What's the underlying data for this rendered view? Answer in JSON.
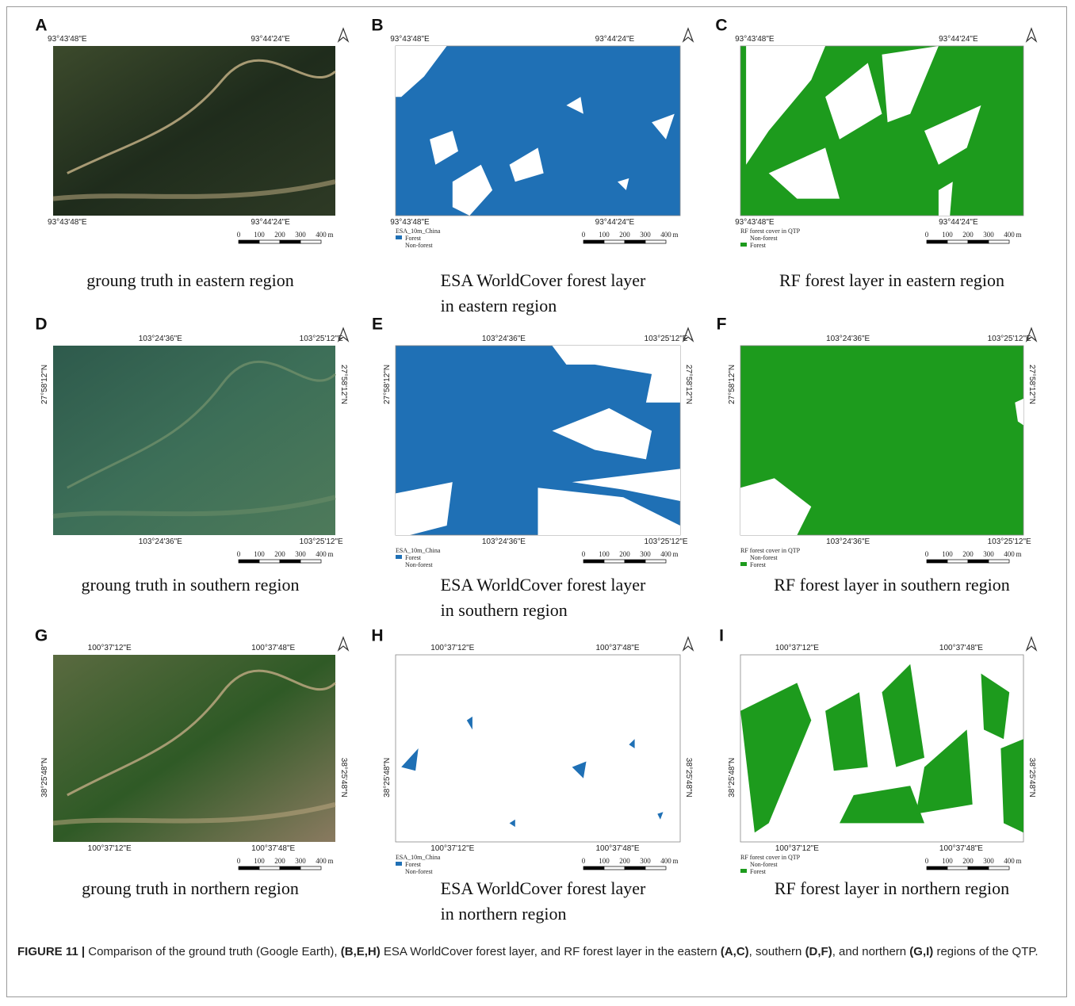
{
  "panels": [
    {
      "letter": "A",
      "kind": "photo",
      "top_labels": [
        "93°43'48\"E",
        "93°44'24\"E"
      ],
      "bottom_labels": [
        "93°43'48\"E",
        "93°44'24\"E"
      ],
      "scale_bar": [
        "0",
        "100",
        "200",
        "300",
        "400",
        "m"
      ],
      "caption": [
        "groung truth in eastern region"
      ]
    },
    {
      "letter": "B",
      "kind": "esa",
      "color": "#1f70b5",
      "top_labels": [
        "93°43'48\"E",
        "93°44'24\"E"
      ],
      "bottom_labels": [
        "93°43'48\"E",
        "93°44'24\"E"
      ],
      "legend": {
        "title": "ESA_10m_China",
        "items": [
          "Forest",
          "Non-forest"
        ]
      },
      "scale_bar": [
        "0",
        "100",
        "200",
        "300",
        "400",
        "m"
      ],
      "caption": [
        "ESA WorldCover forest layer",
        "in eastern region"
      ]
    },
    {
      "letter": "C",
      "kind": "rf",
      "color": "#1d9b1d",
      "top_labels": [
        "93°43'48\"E",
        "93°44'24\"E"
      ],
      "bottom_labels": [
        "93°43'48\"E",
        "93°44'24\"E"
      ],
      "legend": {
        "title": "RF forest cover in QTP",
        "items": [
          "Non-forest",
          "Forest"
        ]
      },
      "scale_bar": [
        "0",
        "100",
        "200",
        "300",
        "400",
        "m"
      ],
      "caption": [
        "RF forest layer in eastern region"
      ]
    },
    {
      "letter": "D",
      "kind": "photo2",
      "top_labels": [
        "103°24'36\"E",
        "103°25'12\"E"
      ],
      "bottom_labels": [
        "103°24'36\"E",
        "103°25'12\"E"
      ],
      "side_labels": [
        "27°58'12\"N",
        "27°58'12\"N"
      ],
      "scale_bar": [
        "0",
        "100",
        "200",
        "300",
        "400",
        "m"
      ],
      "caption": [
        "groung truth in southern region"
      ]
    },
    {
      "letter": "E",
      "kind": "esa",
      "color": "#1f70b5",
      "top_labels": [
        "103°24'36\"E",
        "103°25'12\"E"
      ],
      "bottom_labels": [
        "103°24'36\"E",
        "103°25'12\"E"
      ],
      "side_labels": [
        "27°58'12\"N",
        "27°58'12\"N"
      ],
      "legend": {
        "title": "ESA_10m_China",
        "items": [
          "Forest",
          "Non-forest"
        ]
      },
      "scale_bar": [
        "0",
        "100",
        "200",
        "300",
        "400",
        "m"
      ],
      "caption": [
        "ESA WorldCover forest layer",
        "in southern region"
      ]
    },
    {
      "letter": "F",
      "kind": "rf",
      "color": "#1d9b1d",
      "top_labels": [
        "103°24'36\"E",
        "103°25'12\"E"
      ],
      "bottom_labels": [
        "103°24'36\"E",
        "103°25'12\"E"
      ],
      "side_labels": [
        "27°58'12\"N",
        "27°58'12\"N"
      ],
      "legend": {
        "title": "RF forest cover in QTP",
        "items": [
          "Non-forest",
          "Forest"
        ]
      },
      "scale_bar": [
        "0",
        "100",
        "200",
        "300",
        "400",
        "m"
      ],
      "caption": [
        "RF forest layer in southern region"
      ]
    },
    {
      "letter": "G",
      "kind": "photo3",
      "top_labels": [
        "100°37'12\"E",
        "100°37'48\"E"
      ],
      "bottom_labels": [
        "100°37'12\"E",
        "100°37'48\"E"
      ],
      "side_labels": [
        "38°25'48\"N",
        "38°25'48\"N"
      ],
      "scale_bar": [
        "0",
        "100",
        "200",
        "300",
        "400",
        "m"
      ],
      "caption": [
        "groung truth in northern region"
      ]
    },
    {
      "letter": "H",
      "kind": "esa",
      "color": "#1f70b5",
      "top_labels": [
        "100°37'12\"E",
        "100°37'48\"E"
      ],
      "bottom_labels": [
        "100°37'12\"E",
        "100°37'48\"E"
      ],
      "side_labels": [
        "38°25'48\"N",
        "38°25'48\"N"
      ],
      "legend": {
        "title": "ESA_10m_China",
        "items": [
          "Forest",
          "Non-forest"
        ]
      },
      "scale_bar": [
        "0",
        "100",
        "200",
        "300",
        "400",
        "m"
      ],
      "caption": [
        "ESA WorldCover forest layer",
        "in northern region"
      ]
    },
    {
      "letter": "I",
      "kind": "rf",
      "color": "#1d9b1d",
      "top_labels": [
        "100°37'12\"E",
        "100°37'48\"E"
      ],
      "bottom_labels": [
        "100°37'12\"E",
        "100°37'48\"E"
      ],
      "side_labels": [
        "38°25'48\"N",
        "38°25'48\"N"
      ],
      "legend": {
        "title": "RF forest cover in QTP",
        "items": [
          "Non-forest",
          "Forest"
        ]
      },
      "scale_bar": [
        "0",
        "100",
        "200",
        "300",
        "400",
        "m"
      ],
      "caption": [
        "RF forest layer in northern region"
      ]
    }
  ],
  "figure_caption": [
    {
      "text": "FIGURE 11 | ",
      "bold": true
    },
    {
      "text": "Comparison of the ground truth (Google Earth), ",
      "bold": false
    },
    {
      "text": "(B,E,H)",
      "bold": true
    },
    {
      "text": " ESA WorldCover forest layer, and RF forest layer in the eastern ",
      "bold": false
    },
    {
      "text": "(A,C)",
      "bold": true
    },
    {
      "text": ", southern ",
      "bold": false
    },
    {
      "text": "(D,F)",
      "bold": true
    },
    {
      "text": ", and northern ",
      "bold": false
    },
    {
      "text": "(G,I)",
      "bold": true
    },
    {
      "text": " regions of the QTP.",
      "bold": false
    }
  ]
}
